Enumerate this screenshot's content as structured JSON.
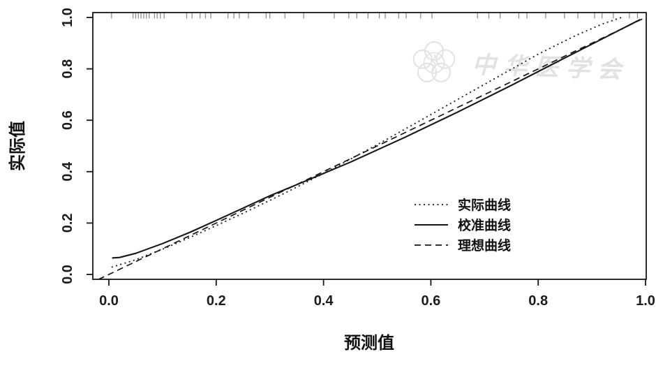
{
  "figure": {
    "background_color": "#ffffff",
    "line_color": "#161616",
    "rug_color": "#8e8e8e",
    "watermark": {
      "text": "中华医学会",
      "logo": "cma-plum-blossom-emblem",
      "color": "#e2e2e2"
    }
  },
  "chart_data": {
    "type": "line",
    "title": "",
    "xlabel": "预测值",
    "ylabel": "实际值",
    "xlim": [
      0,
      1
    ],
    "ylim": [
      0,
      1
    ],
    "x_ticks": [
      "0.0",
      "0.2",
      "0.4",
      "0.6",
      "0.8",
      "1.0"
    ],
    "y_ticks": [
      "0.0",
      "0.2",
      "0.4",
      "0.6",
      "0.8",
      "1.0"
    ],
    "grid": false,
    "legend_position": "right-center",
    "series": [
      {
        "name": "实际曲线",
        "style": "dotted",
        "x": [
          0.005,
          0.05,
          0.1,
          0.15,
          0.2,
          0.25,
          0.3,
          0.36,
          0.42,
          0.5,
          0.6,
          0.7,
          0.8,
          0.87,
          0.92,
          0.955
        ],
        "y": [
          0.028,
          0.057,
          0.098,
          0.143,
          0.19,
          0.238,
          0.288,
          0.35,
          0.415,
          0.505,
          0.622,
          0.74,
          0.857,
          0.93,
          0.975,
          1.0
        ]
      },
      {
        "name": "校准曲线",
        "style": "solid",
        "x": [
          0.006,
          0.02,
          0.05,
          0.1,
          0.15,
          0.2,
          0.25,
          0.3,
          0.36,
          0.45,
          0.55,
          0.65,
          0.75,
          0.85,
          0.93,
          0.99
        ],
        "y": [
          0.064,
          0.066,
          0.082,
          0.12,
          0.163,
          0.21,
          0.258,
          0.306,
          0.358,
          0.437,
          0.532,
          0.632,
          0.736,
          0.843,
          0.928,
          0.992
        ]
      },
      {
        "name": "理想曲线",
        "style": "dashed",
        "x": [
          0,
          1
        ],
        "y": [
          0,
          1
        ]
      }
    ],
    "rug_x": [
      0.005,
      0.045,
      0.05,
      0.055,
      0.06,
      0.065,
      0.07,
      0.075,
      0.085,
      0.09,
      0.096,
      0.103,
      0.145,
      0.155,
      0.17,
      0.18,
      0.19,
      0.222,
      0.233,
      0.243,
      0.26,
      0.293,
      0.3,
      0.328,
      0.363,
      0.42,
      0.447,
      0.462,
      0.483,
      0.504,
      0.515,
      0.54,
      0.554,
      0.581,
      0.602,
      0.687,
      0.708,
      0.729,
      0.764,
      0.779,
      0.814,
      0.849,
      0.874,
      0.905,
      0.919,
      0.94,
      0.97,
      0.985
    ]
  }
}
